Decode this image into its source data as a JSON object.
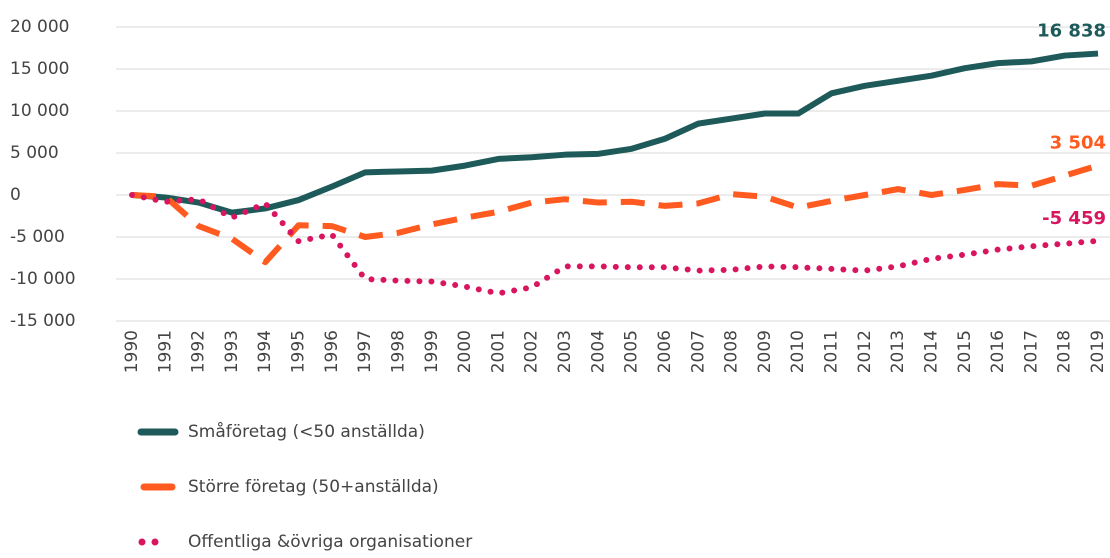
{
  "chart_data": {
    "type": "line",
    "categories": [
      "1990",
      "1991",
      "1992",
      "1993",
      "1994",
      "1995",
      "1996",
      "1997",
      "1998",
      "1999",
      "2000",
      "2001",
      "2002",
      "2003",
      "2004",
      "2005",
      "2006",
      "2007",
      "2008",
      "2009",
      "2010",
      "2011",
      "2012",
      "2013",
      "2014",
      "2015",
      "2016",
      "2017",
      "2018",
      "2019"
    ],
    "series": [
      {
        "name": "Småföretag (<50 anställda)",
        "color": "#1e5a5a",
        "dash": "solid",
        "values": [
          0,
          -300,
          -900,
          -2100,
          -1600,
          -600,
          1000,
          2700,
          2800,
          2900,
          3500,
          4300,
          4500,
          4800,
          4900,
          5500,
          6700,
          8500,
          9100,
          9700,
          9700,
          12100,
          13000,
          13600,
          14200,
          15100,
          15700,
          15900,
          16600,
          16838
        ],
        "value_labels": [
          null,
          null,
          null,
          null,
          null,
          null,
          null,
          null,
          null,
          null,
          null,
          null,
          null,
          null,
          null,
          null,
          null,
          null,
          null,
          null,
          null,
          null,
          null,
          null,
          null,
          null,
          null,
          null,
          null,
          "16 838"
        ]
      },
      {
        "name": "Större företag (50+anställda)",
        "color": "#ff5a1f",
        "dash": "dashed",
        "values": [
          0,
          -200,
          -3700,
          -5200,
          -8000,
          -3600,
          -3700,
          -5000,
          -4500,
          -3500,
          -2700,
          -2000,
          -900,
          -500,
          -900,
          -800,
          -1300,
          -1000,
          100,
          -200,
          -1500,
          -700,
          0,
          700,
          0,
          600,
          1300,
          1100,
          2300,
          3504
        ],
        "value_labels": [
          null,
          null,
          null,
          null,
          null,
          null,
          null,
          null,
          null,
          null,
          null,
          null,
          null,
          null,
          null,
          null,
          null,
          null,
          null,
          null,
          null,
          null,
          null,
          null,
          null,
          null,
          null,
          null,
          null,
          "3 504"
        ]
      },
      {
        "name": "Offentliga &övriga organisationer",
        "color": "#d91560",
        "dash": "dotted",
        "values": [
          0,
          -800,
          -500,
          -2700,
          -1000,
          -5500,
          -4700,
          -10000,
          -10200,
          -10300,
          -10900,
          -11700,
          -11000,
          -8500,
          -8500,
          -8600,
          -8600,
          -9000,
          -8900,
          -8500,
          -8600,
          -8800,
          -9000,
          -8500,
          -7600,
          -7100,
          -6500,
          -6100,
          -5800,
          -5459
        ],
        "value_labels": [
          null,
          null,
          null,
          null,
          null,
          null,
          null,
          null,
          null,
          null,
          null,
          null,
          null,
          null,
          null,
          null,
          null,
          null,
          null,
          null,
          null,
          null,
          null,
          null,
          null,
          null,
          null,
          null,
          null,
          "-5 459"
        ]
      }
    ],
    "ylim": [
      -15000,
      20000
    ],
    "yticks": [
      {
        "value": -15000,
        "label": "-15 000"
      },
      {
        "value": -10000,
        "label": "-10 000"
      },
      {
        "value": -5000,
        "label": "-5 000"
      },
      0,
      {
        "value": 5000,
        "label": "5 000"
      },
      {
        "value": 10000,
        "label": "10 000"
      },
      {
        "value": 15000,
        "label": "15 000"
      },
      {
        "value": 20000,
        "label": "20 000"
      }
    ],
    "grid": true,
    "legend": "bottom"
  }
}
